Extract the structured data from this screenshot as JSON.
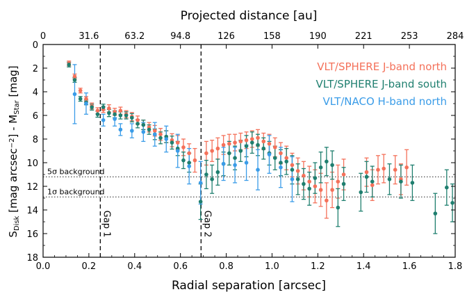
{
  "chart_data": {
    "type": "scatter",
    "xlabel": "Radial separation [arcsec]",
    "ylabel": "S_Disk [mag arcsec^-2] - M_Star [mag]",
    "ylabel_main": "S",
    "ylabel_sub1": "Disk",
    "ylabel_mid": " [mag arcsec",
    "ylabel_sup": "−2",
    "ylabel_end": "] - M",
    "ylabel_sub2": "Star",
    "ylabel_tail": " [mag]",
    "top_xlabel": "Projected distance [au]",
    "xlim": [
      0.0,
      1.8
    ],
    "ylim": [
      18,
      0
    ],
    "x_ticks": [
      "0.0",
      "0.2",
      "0.4",
      "0.6",
      "0.8",
      "1.0",
      "1.2",
      "1.4",
      "1.6",
      "1.8"
    ],
    "y_ticks": [
      "0",
      "2",
      "4",
      "6",
      "8",
      "10",
      "12",
      "14",
      "16",
      "18"
    ],
    "top_ticks": [
      "0",
      "31.6",
      "63.2",
      "94.8",
      "126",
      "158",
      "190",
      "221",
      "253",
      "284"
    ],
    "legend_placement": "top-right",
    "hlines": [
      {
        "label": "5σ background",
        "y": 11.2
      },
      {
        "label": "1σ background",
        "y": 12.9
      }
    ],
    "vlines": [
      {
        "label": "Gap 1",
        "x": 0.25
      },
      {
        "label": "Gap 2",
        "x": 0.69
      }
    ],
    "series": [
      {
        "name": "VLT/SPHERE J-band north",
        "color": "#f4715a",
        "points": [
          [
            0.113,
            1.6,
            0.2
          ],
          [
            0.138,
            2.7,
            0.2
          ],
          [
            0.163,
            3.9,
            0.2
          ],
          [
            0.188,
            4.6,
            0.2
          ],
          [
            0.213,
            5.2,
            0.25
          ],
          [
            0.238,
            5.6,
            0.25
          ],
          [
            0.263,
            5.5,
            0.25
          ],
          [
            0.288,
            5.4,
            0.3
          ],
          [
            0.313,
            5.7,
            0.3
          ],
          [
            0.338,
            5.6,
            0.3
          ],
          [
            0.363,
            5.9,
            0.3
          ],
          [
            0.388,
            6.1,
            0.35
          ],
          [
            0.413,
            6.4,
            0.35
          ],
          [
            0.438,
            6.8,
            0.4
          ],
          [
            0.463,
            7.0,
            0.4
          ],
          [
            0.488,
            7.3,
            0.45
          ],
          [
            0.513,
            7.6,
            0.5
          ],
          [
            0.538,
            7.8,
            0.5
          ],
          [
            0.563,
            8.1,
            0.55
          ],
          [
            0.588,
            8.3,
            0.6
          ],
          [
            0.613,
            8.7,
            0.7
          ],
          [
            0.638,
            9.2,
            0.8
          ],
          [
            0.663,
            9.8,
            1.0
          ],
          [
            0.713,
            9.2,
            1.0
          ],
          [
            0.738,
            9.0,
            0.9
          ],
          [
            0.763,
            8.8,
            0.9
          ],
          [
            0.788,
            8.5,
            0.8
          ],
          [
            0.813,
            8.4,
            0.8
          ],
          [
            0.838,
            8.3,
            0.7
          ],
          [
            0.863,
            8.2,
            0.7
          ],
          [
            0.888,
            8.1,
            0.7
          ],
          [
            0.913,
            8.0,
            0.7
          ],
          [
            0.938,
            7.9,
            0.7
          ],
          [
            0.963,
            8.2,
            0.7
          ],
          [
            0.988,
            8.4,
            0.8
          ],
          [
            1.013,
            8.7,
            0.8
          ],
          [
            1.038,
            9.2,
            0.9
          ],
          [
            1.063,
            9.6,
            1.0
          ],
          [
            1.088,
            10.2,
            1.0
          ],
          [
            1.113,
            10.7,
            1.1
          ],
          [
            1.138,
            11.1,
            1.2
          ],
          [
            1.163,
            11.6,
            1.3
          ],
          [
            1.188,
            12.0,
            1.4
          ],
          [
            1.213,
            12.3,
            1.4
          ],
          [
            1.238,
            13.2,
            1.5
          ],
          [
            1.263,
            12.3,
            1.5
          ],
          [
            1.288,
            11.6,
            1.4
          ],
          [
            1.313,
            11.0,
            1.3
          ],
          [
            1.413,
            10.8,
            1.2
          ],
          [
            1.438,
            11.9,
            1.3
          ],
          [
            1.463,
            10.6,
            1.2
          ],
          [
            1.488,
            10.5,
            1.2
          ],
          [
            1.538,
            10.6,
            1.2
          ],
          [
            1.563,
            11.4,
            1.3
          ],
          [
            1.588,
            10.4,
            1.5
          ]
        ]
      },
      {
        "name": "VLT/SPHERE J-band south",
        "color": "#1f7f6f",
        "points": [
          [
            0.113,
            1.7,
            0.2
          ],
          [
            0.138,
            3.0,
            0.2
          ],
          [
            0.163,
            4.6,
            0.2
          ],
          [
            0.188,
            4.9,
            0.2
          ],
          [
            0.213,
            5.3,
            0.25
          ],
          [
            0.238,
            5.9,
            0.25
          ],
          [
            0.263,
            5.3,
            0.25
          ],
          [
            0.288,
            5.8,
            0.3
          ],
          [
            0.313,
            5.9,
            0.3
          ],
          [
            0.338,
            6.0,
            0.3
          ],
          [
            0.363,
            6.0,
            0.3
          ],
          [
            0.388,
            6.2,
            0.35
          ],
          [
            0.413,
            6.7,
            0.35
          ],
          [
            0.438,
            6.8,
            0.4
          ],
          [
            0.463,
            7.2,
            0.4
          ],
          [
            0.488,
            7.6,
            0.45
          ],
          [
            0.513,
            7.9,
            0.5
          ],
          [
            0.538,
            7.8,
            0.5
          ],
          [
            0.563,
            8.3,
            0.55
          ],
          [
            0.588,
            8.8,
            0.6
          ],
          [
            0.613,
            9.8,
            0.7
          ],
          [
            0.638,
            10.0,
            0.8
          ],
          [
            0.688,
            13.3,
            1.5
          ],
          [
            0.713,
            11.0,
            1.2
          ],
          [
            0.738,
            11.4,
            1.2
          ],
          [
            0.763,
            10.8,
            1.1
          ],
          [
            0.788,
            10.1,
            1.0
          ],
          [
            0.813,
            9.2,
            1.0
          ],
          [
            0.838,
            9.6,
            1.0
          ],
          [
            0.863,
            9.0,
            0.9
          ],
          [
            0.888,
            8.6,
            0.9
          ],
          [
            0.913,
            8.3,
            0.9
          ],
          [
            0.938,
            8.5,
            0.9
          ],
          [
            0.963,
            8.8,
            0.9
          ],
          [
            0.988,
            9.2,
            1.0
          ],
          [
            1.013,
            9.6,
            1.0
          ],
          [
            1.038,
            10.0,
            1.1
          ],
          [
            1.063,
            9.9,
            1.1
          ],
          [
            1.088,
            10.6,
            1.2
          ],
          [
            1.113,
            11.4,
            1.3
          ],
          [
            1.138,
            11.8,
            1.3
          ],
          [
            1.163,
            12.2,
            1.4
          ],
          [
            1.188,
            11.3,
            1.3
          ],
          [
            1.213,
            10.4,
            1.3
          ],
          [
            1.238,
            9.9,
            1.2
          ],
          [
            1.263,
            10.2,
            1.2
          ],
          [
            1.288,
            13.8,
            1.6
          ],
          [
            1.313,
            11.8,
            1.4
          ],
          [
            1.388,
            12.5,
            1.6
          ],
          [
            1.413,
            11.2,
            1.3
          ],
          [
            1.438,
            11.6,
            1.3
          ],
          [
            1.513,
            11.4,
            1.3
          ],
          [
            1.563,
            11.6,
            1.4
          ],
          [
            1.613,
            11.7,
            1.5
          ],
          [
            1.713,
            14.3,
            1.7
          ],
          [
            1.763,
            12.1,
            1.5
          ],
          [
            1.788,
            13.4,
            1.6
          ]
        ]
      },
      {
        "name": "VLT/NACO H-band north",
        "color": "#3a9ce8",
        "points": [
          [
            0.138,
            4.2,
            2.5
          ],
          [
            0.188,
            5.0,
            0.9
          ],
          [
            0.263,
            6.4,
            0.5
          ],
          [
            0.313,
            6.3,
            0.6
          ],
          [
            0.338,
            7.2,
            0.5
          ],
          [
            0.388,
            7.3,
            0.6
          ],
          [
            0.438,
            7.4,
            0.8
          ],
          [
            0.488,
            7.6,
            1.0
          ],
          [
            0.538,
            8.0,
            1.1
          ],
          [
            0.588,
            9.0,
            1.4
          ],
          [
            0.638,
            10.3,
            1.5
          ],
          [
            0.688,
            11.7,
            1.8
          ],
          [
            0.788,
            10.1,
            1.4
          ],
          [
            0.838,
            10.2,
            1.5
          ],
          [
            0.888,
            10.0,
            1.5
          ],
          [
            0.938,
            10.6,
            1.7
          ],
          [
            0.988,
            9.3,
            1.6
          ],
          [
            1.038,
            10.4,
            1.7
          ],
          [
            1.088,
            11.4,
            1.9
          ]
        ]
      }
    ]
  }
}
